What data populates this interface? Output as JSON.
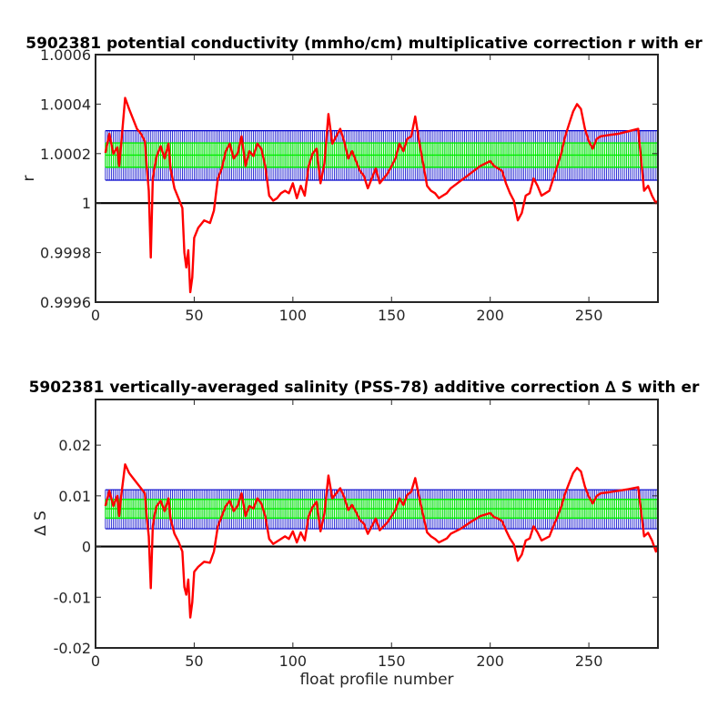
{
  "chart_data": [
    {
      "type": "line",
      "title": "5902381 potential conductivity (mmho/cm) multiplicative correction r with er",
      "xlabel": "",
      "ylabel": "r",
      "xlim": [
        0,
        285
      ],
      "ylim": [
        0.9996,
        1.0006
      ],
      "xticks": [
        0,
        50,
        100,
        150,
        200,
        250
      ],
      "xtick_labels": [
        "0",
        "50",
        "100",
        "150",
        "200",
        "250"
      ],
      "yticks": [
        0.9996,
        0.9998,
        1.0,
        1.0002,
        1.0004,
        1.0006
      ],
      "ytick_labels": [
        "0.9996",
        "0.9998",
        "1",
        "1.0002",
        "1.0004",
        "1.0006"
      ],
      "baseline": 1.0,
      "grid": false,
      "colors": {
        "series": "#ff0000",
        "error_band_outer": "#0000cc",
        "error_band_inner": "#00ee00",
        "baseline": "#000000"
      },
      "error_band": {
        "x_from": 5,
        "x_to": 285,
        "outer": [
          1.0000926,
          1.0002926
        ],
        "inner": [
          1.000145,
          1.000243
        ]
      },
      "series": [
        {
          "x": [
            5,
            7,
            9,
            11,
            12,
            13,
            15,
            17,
            19,
            21,
            23,
            25,
            26,
            27,
            28,
            29,
            30,
            31,
            33,
            35,
            37,
            38,
            40,
            42,
            44,
            45,
            46,
            47,
            48,
            49,
            50,
            52,
            55,
            58,
            60,
            62,
            64,
            66,
            68,
            70,
            72,
            74,
            76,
            78,
            80,
            82,
            84,
            86,
            88,
            90,
            92,
            94,
            96,
            98,
            100,
            102,
            104,
            106,
            108,
            110,
            112,
            114,
            116,
            118,
            120,
            122,
            124,
            126,
            128,
            130,
            132,
            134,
            136,
            138,
            140,
            142,
            144,
            146,
            148,
            150,
            152,
            154,
            156,
            158,
            160,
            162,
            164,
            166,
            168,
            170,
            172,
            174,
            176,
            178,
            180,
            185,
            190,
            195,
            200,
            202,
            204,
            206,
            208,
            210,
            212,
            214,
            216,
            218,
            220,
            222,
            224,
            226,
            228,
            230,
            232,
            234,
            236,
            238,
            240,
            242,
            244,
            246,
            248,
            250,
            252,
            254,
            256,
            260,
            265,
            270,
            275,
            278,
            280,
            282,
            284,
            285
          ],
          "y": [
            1.000203,
            1.00028,
            1.0002,
            1.000225,
            1.00015,
            1.00024,
            1.000425,
            1.00038,
            1.00034,
            1.0003,
            1.00028,
            1.00025,
            1.00014,
            1.00005,
            0.99978,
            1.0001,
            1.00015,
            1.00019,
            1.00023,
            1.00018,
            1.00024,
            1.00014,
            1.00006,
            1.00002,
            0.99998,
            0.9998,
            0.99974,
            0.99981,
            0.99964,
            0.9997,
            0.99986,
            0.9999,
            0.99993,
            0.99992,
            0.99997,
            1.0001,
            1.00014,
            1.00021,
            1.00024,
            1.00018,
            1.0002,
            1.00027,
            1.00015,
            1.00021,
            1.00019,
            1.00024,
            1.00022,
            1.00015,
            1.00003,
            1.00001,
            1.00002,
            1.00004,
            1.00005,
            1.00004,
            1.00008,
            1.00002,
            1.00007,
            1.00003,
            1.00015,
            1.0002,
            1.00022,
            1.00008,
            1.00016,
            1.00036,
            1.00024,
            1.00027,
            1.0003,
            1.00025,
            1.00018,
            1.00021,
            1.00017,
            1.00013,
            1.00011,
            1.00006,
            1.0001,
            1.00014,
            1.00008,
            1.0001,
            1.00012,
            1.00015,
            1.00018,
            1.00024,
            1.00021,
            1.00026,
            1.00027,
            1.00035,
            1.00025,
            1.00016,
            1.00007,
            1.00005,
            1.00004,
            1.00002,
            1.00003,
            1.00004,
            1.00006,
            1.00009,
            1.00012,
            1.00015,
            1.00017,
            1.00015,
            1.00014,
            1.00013,
            1.00008,
            1.00004,
            1.00001,
            0.99993,
            0.99996,
            1.00003,
            1.00004,
            1.0001,
            1.00007,
            1.00003,
            1.00004,
            1.00005,
            1.0001,
            1.00015,
            1.0002,
            1.00027,
            1.00032,
            1.00037,
            1.0004,
            1.00038,
            1.0003,
            1.00025,
            1.00022,
            1.00026,
            1.00027,
            1.000275,
            1.00028,
            1.00029,
            1.0003,
            1.00005,
            1.00007,
            1.00003,
            1.0,
            1.00001
          ]
        }
      ]
    },
    {
      "type": "line",
      "title": "5902381 vertically-averaged salinity (PSS-78) additive correction ∆ S with er",
      "xlabel": "float profile number",
      "ylabel": "∆ S",
      "xlim": [
        0,
        285
      ],
      "ylim": [
        -0.02,
        0.029
      ],
      "xticks": [
        0,
        50,
        100,
        150,
        200,
        250
      ],
      "xtick_labels": [
        "0",
        "50",
        "100",
        "150",
        "200",
        "250"
      ],
      "yticks": [
        -0.02,
        -0.01,
        0,
        0.01,
        0.02
      ],
      "ytick_labels": [
        "-0.02",
        "-0.01",
        "0",
        "0.01",
        "0.02"
      ],
      "baseline": 0,
      "grid": false,
      "colors": {
        "series": "#ff0000",
        "error_band_outer": "#0000cc",
        "error_band_inner": "#00ee00",
        "baseline": "#000000"
      },
      "error_band": {
        "x_from": 5,
        "x_to": 285,
        "outer": [
          0.0035,
          0.0112
        ],
        "inner": [
          0.0056,
          0.0093
        ]
      },
      "series": [
        {
          "x": [
            5,
            7,
            9,
            11,
            12,
            13,
            15,
            17,
            19,
            21,
            23,
            25,
            26,
            27,
            28,
            29,
            30,
            31,
            33,
            35,
            37,
            38,
            40,
            42,
            44,
            45,
            46,
            47,
            48,
            49,
            50,
            52,
            55,
            58,
            60,
            62,
            64,
            66,
            68,
            70,
            72,
            74,
            76,
            78,
            80,
            82,
            84,
            86,
            88,
            90,
            92,
            94,
            96,
            98,
            100,
            102,
            104,
            106,
            108,
            110,
            112,
            114,
            116,
            118,
            120,
            122,
            124,
            126,
            128,
            130,
            132,
            134,
            136,
            138,
            140,
            142,
            144,
            146,
            148,
            150,
            152,
            154,
            156,
            158,
            160,
            162,
            164,
            166,
            168,
            170,
            172,
            174,
            176,
            178,
            180,
            185,
            190,
            195,
            200,
            202,
            204,
            206,
            208,
            210,
            212,
            214,
            216,
            218,
            220,
            222,
            224,
            226,
            228,
            230,
            232,
            234,
            236,
            238,
            240,
            242,
            244,
            246,
            248,
            250,
            252,
            254,
            256,
            260,
            265,
            270,
            275,
            278,
            280,
            282,
            284,
            285
          ],
          "y": [
            0.008,
            0.011,
            0.008,
            0.01,
            0.006,
            0.01,
            0.0162,
            0.0145,
            0.0135,
            0.0125,
            0.0115,
            0.0105,
            0.0055,
            0.002,
            -0.0082,
            0.004,
            0.0065,
            0.008,
            0.009,
            0.007,
            0.0095,
            0.0055,
            0.0025,
            0.001,
            -0.001,
            -0.008,
            -0.0095,
            -0.0065,
            -0.014,
            -0.011,
            -0.005,
            -0.004,
            -0.003,
            -0.0032,
            -0.001,
            0.004,
            0.006,
            0.008,
            0.009,
            0.007,
            0.008,
            0.0105,
            0.006,
            0.008,
            0.0075,
            0.0095,
            0.0085,
            0.006,
            0.0015,
            0.0005,
            0.001,
            0.0015,
            0.002,
            0.0015,
            0.003,
            0.0008,
            0.0028,
            0.0012,
            0.006,
            0.0078,
            0.0088,
            0.003,
            0.0065,
            0.014,
            0.0095,
            0.0105,
            0.0115,
            0.0098,
            0.0072,
            0.0082,
            0.0068,
            0.0052,
            0.0045,
            0.0025,
            0.004,
            0.0055,
            0.0032,
            0.004,
            0.0048,
            0.006,
            0.0072,
            0.0095,
            0.0082,
            0.0102,
            0.0108,
            0.0135,
            0.0098,
            0.0062,
            0.0028,
            0.002,
            0.0015,
            0.0008,
            0.0012,
            0.0016,
            0.0025,
            0.0035,
            0.0048,
            0.006,
            0.0066,
            0.0058,
            0.0055,
            0.005,
            0.0032,
            0.0016,
            0.0004,
            -0.0028,
            -0.0016,
            0.0012,
            0.0016,
            0.004,
            0.0028,
            0.0012,
            0.0016,
            0.002,
            0.004,
            0.0058,
            0.0078,
            0.0105,
            0.0125,
            0.0145,
            0.0155,
            0.0148,
            0.0118,
            0.0098,
            0.0085,
            0.01,
            0.0105,
            0.0107,
            0.011,
            0.0113,
            0.0117,
            0.002,
            0.0027,
            0.0012,
            -0.001,
            0.0
          ]
        }
      ]
    }
  ]
}
